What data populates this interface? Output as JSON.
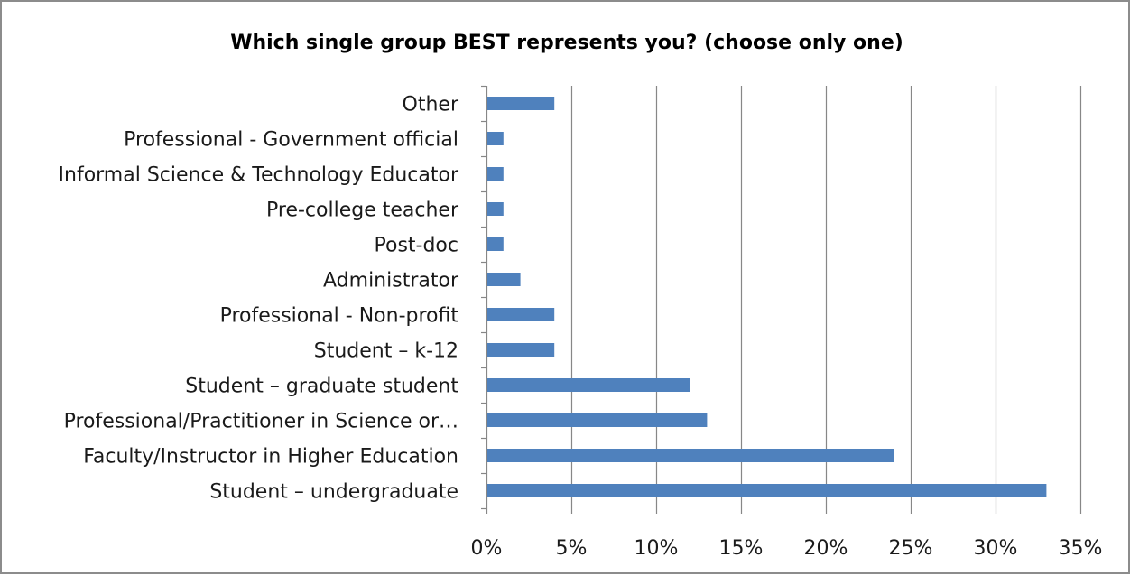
{
  "chart_data": {
    "type": "bar",
    "orientation": "horizontal",
    "title": "Which single group BEST represents you? (choose only one)",
    "xlabel": "",
    "ylabel": "",
    "categories": [
      "Other",
      "Professional - Government official",
      "Informal Science & Technology Educator",
      "Pre-college teacher",
      "Post-doc",
      "Administrator",
      "Professional - Non-profit",
      "Student – k-12",
      "Student – graduate student",
      "Professional/Practitioner in Science or…",
      "Faculty/Instructor in Higher Education",
      "Student – undergraduate"
    ],
    "values": [
      4,
      1,
      1,
      1,
      1,
      2,
      4,
      4,
      12,
      13,
      24,
      33
    ],
    "value_unit": "%",
    "xlim": [
      0,
      35
    ],
    "x_ticks": [
      0,
      5,
      10,
      15,
      20,
      25,
      30,
      35
    ],
    "x_tick_labels": [
      "0%",
      "5%",
      "10%",
      "15%",
      "20%",
      "25%",
      "30%",
      "35%"
    ],
    "grid": "vertical",
    "legend": "none",
    "bar_color": "#4f81bd",
    "grid_color": "#878787"
  }
}
